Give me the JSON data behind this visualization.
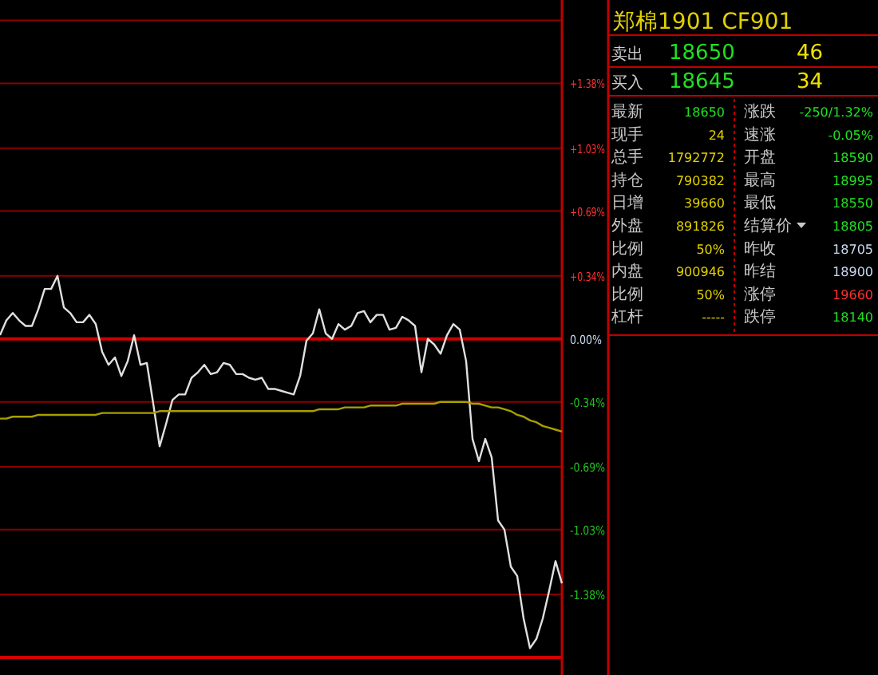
{
  "chart_data": [
    {
      "type": "line",
      "ylim": [
        -1.72,
        1.83
      ],
      "categories": [
        null,
        null,
        null,
        null,
        null,
        null,
        null,
        null,
        null,
        null,
        null,
        null,
        null,
        null,
        null,
        null,
        null,
        null,
        null,
        null,
        null,
        null,
        null,
        null,
        null,
        null,
        null,
        null,
        null,
        null,
        null,
        null,
        null,
        null,
        null,
        null,
        null,
        null,
        null,
        null,
        null,
        null,
        null,
        null,
        null,
        null,
        null,
        null,
        null,
        null,
        null,
        null,
        null,
        null,
        null,
        null,
        null,
        null,
        null,
        null,
        null,
        null,
        null,
        null,
        null,
        null,
        null,
        null,
        null,
        null,
        null,
        null,
        null,
        null,
        null,
        null,
        null,
        null,
        null,
        null,
        null,
        null,
        null,
        null,
        null,
        null,
        null,
        null,
        null
      ],
      "yticks": [
        {
          "value": 1.72,
          "label": null
        },
        {
          "value": 1.38,
          "label": "+1.38%"
        },
        {
          "value": 1.03,
          "label": "+1.03%"
        },
        {
          "value": 0.69,
          "label": "+0.69%"
        },
        {
          "value": 0.34,
          "label": "+0.34%"
        },
        {
          "value": 0,
          "label": "0.00%"
        },
        {
          "value": -0.34,
          "label": "-0.34%"
        },
        {
          "value": -0.69,
          "label": "-0.69%"
        },
        {
          "value": -1.03,
          "label": "-1.03%"
        },
        {
          "value": -1.38,
          "label": "-1.38%"
        },
        {
          "value": -1.72,
          "label": null
        }
      ],
      "grid": "y",
      "marker": "none",
      "ref_lines": [
        {
          "axis": "y",
          "value": 0,
          "color": "#d00000"
        }
      ],
      "series": [
        {
          "color": "#e0e0e0",
          "values": [
            0.02,
            0.1,
            0.14,
            0.1,
            0.07,
            0.07,
            0.16,
            0.27,
            0.27,
            0.34,
            0.17,
            0.14,
            0.09,
            0.09,
            0.13,
            0.08,
            -0.07,
            -0.14,
            -0.1,
            -0.2,
            -0.12,
            0.02,
            -0.14,
            -0.13,
            -0.35,
            -0.58,
            -0.46,
            -0.33,
            -0.3,
            -0.3,
            -0.21,
            -0.18,
            -0.14,
            -0.19,
            -0.18,
            -0.13,
            -0.14,
            -0.19,
            -0.19,
            -0.21,
            -0.22,
            -0.21,
            -0.27,
            -0.27,
            -0.28,
            -0.29,
            -0.3,
            -0.2,
            -0.01,
            0.03,
            0.16,
            0.03,
            0.0,
            0.08,
            0.05,
            0.07,
            0.14,
            0.15,
            0.09,
            0.13,
            0.13,
            0.05,
            0.06,
            0.12,
            0.1,
            0.07,
            -0.18,
            0.0,
            -0.03,
            -0.08,
            0.02,
            0.08,
            0.05,
            -0.12,
            -0.54,
            -0.66,
            -0.54,
            -0.64,
            -0.98,
            -1.03,
            -1.23,
            -1.28,
            -1.51,
            -1.67,
            -1.62,
            -1.51,
            -1.36,
            -1.2,
            -1.32
          ]
        },
        {
          "color": "#a8a000",
          "values": [
            -0.43,
            -0.43,
            -0.42,
            -0.42,
            -0.42,
            -0.42,
            -0.41,
            -0.41,
            -0.41,
            -0.41,
            -0.41,
            -0.41,
            -0.41,
            -0.41,
            -0.41,
            -0.41,
            -0.4,
            -0.4,
            -0.4,
            -0.4,
            -0.4,
            -0.4,
            -0.4,
            -0.4,
            -0.4,
            -0.39,
            -0.39,
            -0.39,
            -0.39,
            -0.39,
            -0.39,
            -0.39,
            -0.39,
            -0.39,
            -0.39,
            -0.39,
            -0.39,
            -0.39,
            -0.39,
            -0.39,
            -0.39,
            -0.39,
            -0.39,
            -0.39,
            -0.39,
            -0.39,
            -0.39,
            -0.39,
            -0.39,
            -0.39,
            -0.38,
            -0.38,
            -0.38,
            -0.38,
            -0.37,
            -0.37,
            -0.37,
            -0.37,
            -0.36,
            -0.36,
            -0.36,
            -0.36,
            -0.36,
            -0.35,
            -0.35,
            -0.35,
            -0.35,
            -0.35,
            -0.35,
            -0.34,
            -0.34,
            -0.34,
            -0.34,
            -0.34,
            -0.35,
            -0.35,
            -0.36,
            -0.37,
            -0.37,
            -0.38,
            -0.39,
            -0.41,
            -0.42,
            -0.44,
            -0.45,
            -0.47,
            -0.48,
            -0.49,
            -0.5
          ]
        }
      ]
    },
    {
      "type": "other",
      "title": "郑棉1901  CF901",
      "annotations": [
        "卖出",
        "18650",
        "46",
        "买入",
        "18645",
        "34",
        "最新",
        "18650",
        "涨跌",
        "-250/1.32%",
        "现手",
        "24",
        "速涨",
        "-0.05%",
        "总手",
        "1792772",
        "开盘",
        "18590",
        "持仓",
        "790382",
        "最高",
        "18995",
        "日增",
        "39660",
        "最低",
        "18550",
        "外盘",
        "891826",
        "结算价",
        "18805",
        "比例",
        "50%",
        "昨收",
        "18705",
        "内盘",
        "900946",
        "昨结",
        "18900",
        "比例",
        "50%",
        "涨停",
        "19660",
        "杠杆",
        "-----",
        "跌停",
        "18140"
      ]
    }
  ]
}
